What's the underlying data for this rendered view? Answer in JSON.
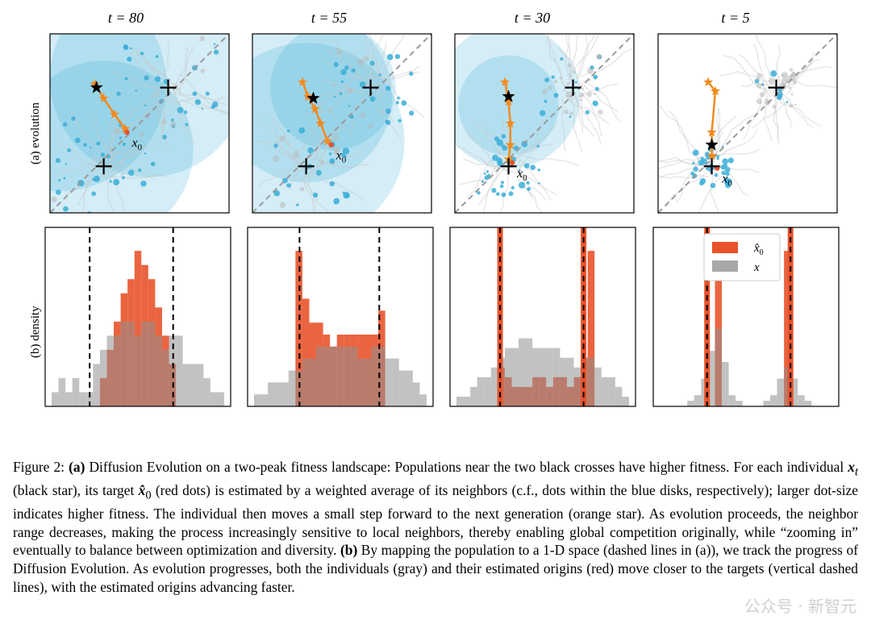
{
  "columns": [
    {
      "title": "t = 80",
      "t": 80
    },
    {
      "title": "t = 55",
      "t": 55
    },
    {
      "title": "t = 30",
      "t": 30
    },
    {
      "title": "t = 5",
      "t": 5
    }
  ],
  "row_labels": {
    "a": "(a) evolution",
    "b": "(b) density"
  },
  "annotations": {
    "x0": "x",
    "x0_sub": "0"
  },
  "legend": {
    "xhat": "x̂",
    "xhat_sub": "0",
    "x": "x"
  },
  "colors": {
    "blue": "#3aaed8",
    "orange": "#f28a1e",
    "red": "#e8532b",
    "gray": "#a8a8a8"
  },
  "chart_data": [
    {
      "type": "bar",
      "t": 80,
      "gray": [
        1,
        2,
        1,
        2,
        1,
        1,
        3,
        4,
        5,
        5,
        6,
        6,
        5,
        6,
        6,
        5,
        4,
        5,
        5,
        3,
        3,
        3,
        2,
        1,
        1
      ],
      "orange": [
        0,
        0,
        0,
        0,
        0,
        0,
        0,
        2,
        4,
        6,
        8,
        9,
        11,
        10,
        9,
        7,
        5,
        3,
        0,
        0,
        0,
        0,
        0,
        0,
        0
      ],
      "dashed": [
        0.24,
        0.69
      ]
    },
    {
      "type": "bar",
      "t": 55,
      "gray": [
        1,
        1,
        2,
        2,
        2,
        3,
        3,
        4,
        4,
        5,
        5,
        5,
        5,
        5,
        5,
        4,
        4,
        5,
        5,
        4,
        4,
        3,
        3,
        2,
        1
      ],
      "orange": [
        0,
        0,
        0,
        0,
        0,
        0,
        13,
        9,
        7,
        7,
        6,
        5,
        6,
        6,
        6,
        6,
        6,
        6,
        8,
        0,
        0,
        0,
        0,
        0,
        0
      ],
      "dashed": [
        0.28,
        0.71
      ]
    },
    {
      "type": "bar",
      "t": 30,
      "gray": [
        1,
        1,
        2,
        3,
        3,
        4,
        5,
        6,
        6,
        7,
        7,
        6,
        6,
        6,
        6,
        5,
        5,
        4,
        5,
        5,
        4,
        3,
        3,
        2,
        1
      ],
      "orange": [
        0,
        0,
        0,
        0,
        0,
        0,
        4,
        3,
        2,
        2,
        2,
        3,
        3,
        2,
        3,
        3,
        2,
        3,
        5,
        16,
        0,
        0,
        0,
        0,
        0
      ],
      "dashed": [
        0.27,
        0.72
      ]
    },
    {
      "type": "bar",
      "t": 5,
      "gray": [
        0,
        0,
        0,
        0,
        1,
        2,
        5,
        10,
        14,
        8,
        2,
        1,
        0,
        0,
        0,
        1,
        2,
        5,
        7,
        5,
        2,
        1,
        0,
        0,
        0
      ],
      "orange": [
        0,
        0,
        0,
        0,
        0,
        0,
        0,
        0,
        28,
        0,
        0,
        0,
        0,
        0,
        0,
        0,
        0,
        0,
        28,
        0,
        0,
        0,
        0,
        0,
        0
      ],
      "dashed": [
        0.29,
        0.74
      ]
    }
  ],
  "caption": {
    "fig_label": "Figure 2:",
    "a_label": "(a)",
    "part1": " Diffusion Evolution on a two-peak fitness landscape: Populations near the two black crosses have higher fitness. For each individual ",
    "xt": "x",
    "xt_sub": "t",
    "part2": " (black star), its target ",
    "xhat": "x̂",
    "xhat_sub": "0",
    "part3": " (red dots) is estimated by a weighted average of its neighbors (c.f., dots within the blue disks, respectively); larger dot-size indicates higher fitness. The individual then moves a small step forward to the next generation (orange star). As evolution proceeds, the neighbor range decreases, making the process increasingly sensitive to local neighbors, thereby enabling global competition originally, while “zooming in” eventually to balance between optimization and diversity. ",
    "b_label": "(b)",
    "part4": " By mapping the population to a 1-D space (dashed lines in (a)), we track the progress of Diffusion Evolution. As evolution progresses, both the individuals (gray) and their estimated origins (red) move closer to the targets (vertical dashed lines), with the estimated origins advancing faster."
  },
  "watermark": "公众号 · 新智元"
}
